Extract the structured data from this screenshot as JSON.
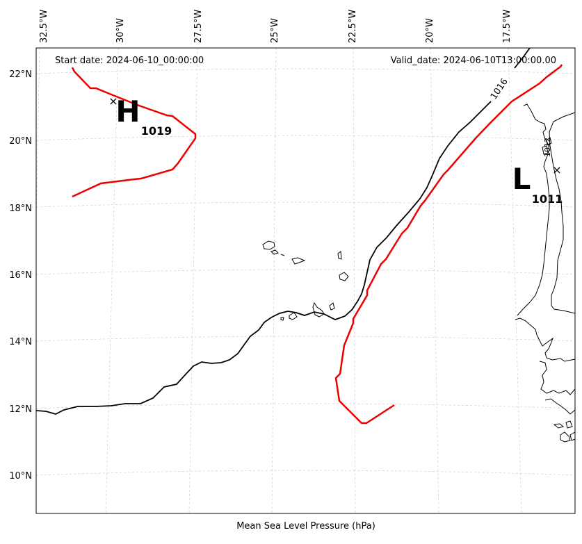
{
  "header": {
    "start_date": "Start date: 2024-06-10_00:00:00",
    "valid_date": "Valid_date: 2024-06-10T13:00:00.00"
  },
  "footer": {
    "caption": "Mean Sea Level Pressure (hPa)"
  },
  "axes": {
    "lon_labels": [
      "32.5°W",
      "30°W",
      "27.5°W",
      "25°W",
      "22.5°W",
      "20°W",
      "17.5°W"
    ],
    "lat_labels": [
      "22°N",
      "20°N",
      "18°N",
      "16°N",
      "14°N",
      "12°N",
      "10°N"
    ]
  },
  "pressure_centers": {
    "high": {
      "symbol": "H",
      "value": "1019"
    },
    "low": {
      "symbol": "L",
      "value": "1011"
    }
  },
  "isobar": {
    "label": "1016",
    "label_partial": "1012"
  },
  "colors": {
    "trough_line": "#ee0000",
    "isobar": "#000000",
    "coast": "#000000",
    "grid": "#cccccc"
  }
}
